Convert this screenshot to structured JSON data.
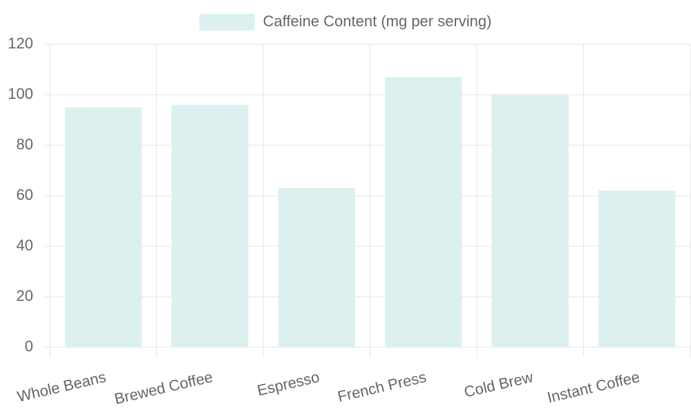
{
  "chart_data": {
    "type": "bar",
    "categories": [
      "Whole Beans",
      "Brewed Coffee",
      "Espresso",
      "French Press",
      "Cold Brew",
      "Instant Coffee"
    ],
    "series": [
      {
        "name": "Caffeine Content (mg per serving)",
        "color": "#dbf0ef",
        "values": [
          95,
          96,
          63,
          107,
          100,
          62
        ]
      }
    ],
    "ylim": [
      0,
      120
    ],
    "yticks": [
      0,
      20,
      40,
      60,
      80,
      100,
      120
    ],
    "grid": true,
    "legend": "top"
  }
}
